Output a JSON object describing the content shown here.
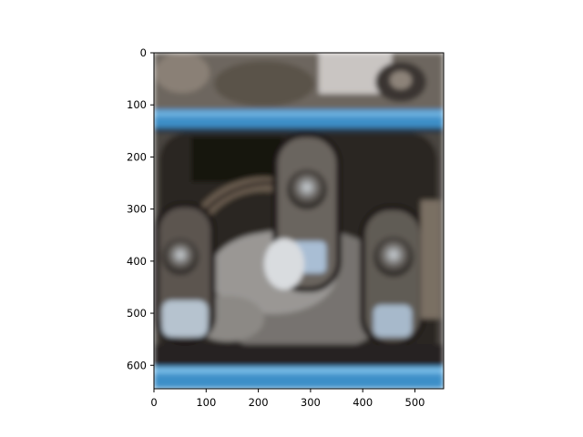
{
  "figure": {
    "image_subject": "blurry close-up photo of engine valve rocker arms with blue gasket rails",
    "x_ticks": [
      "0",
      "100",
      "200",
      "300",
      "400",
      "500"
    ],
    "y_ticks": [
      "0",
      "100",
      "200",
      "300",
      "400",
      "500",
      "600"
    ],
    "x_range": [
      0,
      555
    ],
    "y_range": [
      0,
      645
    ],
    "x_tick_values": [
      0,
      100,
      200,
      300,
      400,
      500
    ],
    "y_tick_values": [
      0,
      100,
      200,
      300,
      400,
      500,
      600
    ],
    "colors": {
      "gasket_blue": "#3c8fc8",
      "metal_dark": "#2e2a26",
      "metal_mid": "#6f6a64",
      "metal_light": "#b8b4ae",
      "axis": "#000000"
    }
  }
}
